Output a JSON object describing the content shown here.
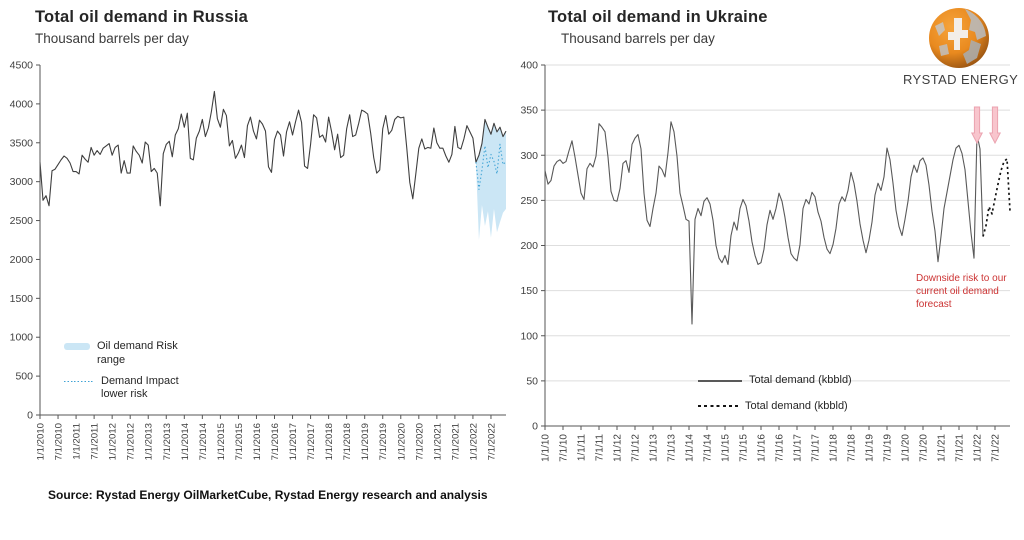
{
  "source": {
    "text": "Source: Rystad Energy OilMarketCube, Rystad Energy research and analysis"
  },
  "logo": {
    "text": "RYSTAD ENERGY",
    "globe_orange": "#e98a1f",
    "globe_dark": "#8a4a10",
    "globe_silver": "#b9b9b9"
  },
  "colors": {
    "russia_line": "#3f3f3f",
    "ukraine_line": "#595959",
    "forecast_dotted": "#141414",
    "risk_band": "#cbe6f5",
    "risk_dotted": "#3fa3d5",
    "grid": "#dedede",
    "axis": "#555555",
    "tick_text": "#3f3f3f",
    "annotation_red": "#cc3333",
    "arrow_fill": "#f8c5cd",
    "arrow_stroke": "#eba3b0"
  },
  "chart_data": [
    {
      "id": "russia",
      "type": "line",
      "title": "Total oil demand in Russia",
      "subtitle": "Thousand barrels per day",
      "unit": "kbbld",
      "ylim": [
        0,
        4500
      ],
      "yticks": [
        0,
        500,
        1000,
        1500,
        2000,
        2500,
        3000,
        3500,
        4000,
        4500
      ],
      "grid": false,
      "months_total": 156,
      "x_tick_every": 6,
      "x_tick_labels": [
        "1/1/2010",
        "7/1/2010",
        "1/1/2011",
        "7/1/2011",
        "1/1/2012",
        "7/1/2012",
        "1/1/2013",
        "7/1/2013",
        "1/1/2014",
        "7/1/2014",
        "1/1/2015",
        "7/1/2015",
        "1/1/2016",
        "7/1/2016",
        "1/1/2017",
        "7/1/2017",
        "1/1/2018",
        "7/1/2018",
        "1/1/2019",
        "7/1/2019",
        "1/1/2020",
        "7/1/2020",
        "1/1/2021",
        "7/1/2021",
        "1/1/2022",
        "7/1/2022"
      ],
      "series": [
        {
          "name": "Total demand",
          "style": "solid",
          "color": "#3f3f3f",
          "start_month": 0,
          "values": [
            3250,
            2760,
            2820,
            2690,
            3140,
            3160,
            3220,
            3280,
            3330,
            3300,
            3240,
            3130,
            3130,
            3100,
            3340,
            3290,
            3250,
            3440,
            3340,
            3400,
            3350,
            3430,
            3460,
            3490,
            3340,
            3440,
            3470,
            3110,
            3270,
            3110,
            3110,
            3460,
            3390,
            3340,
            3240,
            3510,
            3470,
            3130,
            3170,
            3110,
            2690,
            3360,
            3480,
            3520,
            3320,
            3600,
            3680,
            3870,
            3700,
            3880,
            3300,
            3280,
            3560,
            3650,
            3800,
            3580,
            3690,
            3900,
            4160,
            3810,
            3700,
            3930,
            3850,
            3460,
            3530,
            3300,
            3370,
            3470,
            3310,
            3720,
            3830,
            3650,
            3550,
            3790,
            3740,
            3650,
            3190,
            3120,
            3540,
            3650,
            3600,
            3330,
            3640,
            3770,
            3600,
            3770,
            3920,
            3760,
            3200,
            3170,
            3480,
            3860,
            3820,
            3570,
            3600,
            3510,
            3830,
            3640,
            3410,
            3610,
            3310,
            3340,
            3680,
            3860,
            3580,
            3600,
            3750,
            3920,
            3900,
            3870,
            3620,
            3310,
            3110,
            3150,
            3680,
            3850,
            3610,
            3660,
            3800,
            3840,
            3820,
            3830,
            3430,
            2990,
            2780,
            3100,
            3430,
            3550,
            3420,
            3440,
            3430,
            3690,
            3500,
            3430,
            3430,
            3330,
            3250,
            3350,
            3710,
            3440,
            3420,
            3550,
            3720,
            3640,
            3560,
            3250,
            3340,
            3490,
            3800,
            3700,
            3610,
            3750,
            3640,
            3700,
            3580,
            3650
          ]
        },
        {
          "name": "Demand Impact lower risk",
          "style": "dotted-fine",
          "color": "#3fa3d5",
          "start_month": 145,
          "values": [
            3250,
            2900,
            3150,
            3460,
            3180,
            3350,
            3260,
            3100,
            3480,
            3220,
            3260
          ]
        }
      ],
      "band": {
        "name": "Oil demand Risk range",
        "color": "#cbe6f5",
        "start_month": 145,
        "top": [
          3250,
          3340,
          3490,
          3800,
          3700,
          3610,
          3750,
          3640,
          3700,
          3580,
          3650
        ],
        "bottom": [
          3250,
          2250,
          2700,
          2430,
          2620,
          2280,
          2650,
          2350,
          2480,
          2600,
          2650
        ]
      },
      "legend": [
        {
          "label": "Oil demand Risk range",
          "swatch": "band"
        },
        {
          "label": "Demand Impact lower risk",
          "swatch": "dotblue"
        }
      ]
    },
    {
      "id": "ukraine",
      "type": "line",
      "title": "Total oil demand in Ukraine",
      "subtitle": "Thousand barrels per day",
      "unit": "kbbld",
      "ylim": [
        0,
        400
      ],
      "yticks": [
        0,
        50,
        100,
        150,
        200,
        250,
        300,
        350,
        400
      ],
      "grid": true,
      "months_total": 156,
      "x_tick_every": 6,
      "x_tick_labels": [
        "1/1/10",
        "7/1/10",
        "1/1/11",
        "7/1/11",
        "1/1/12",
        "7/1/12",
        "1/1/13",
        "7/1/13",
        "1/1/14",
        "7/1/14",
        "1/1/15",
        "7/1/15",
        "1/1/16",
        "7/1/16",
        "1/1/17",
        "7/1/17",
        "1/1/18",
        "7/1/18",
        "1/1/19",
        "7/1/19",
        "1/1/20",
        "7/1/20",
        "1/1/21",
        "7/1/21",
        "1/1/22",
        "7/1/22"
      ],
      "series": [
        {
          "name": "Total demand (kbbld)",
          "style": "solid",
          "color": "#595959",
          "start_month": 0,
          "values": [
            283,
            268,
            272,
            288,
            293,
            295,
            291,
            293,
            305,
            316,
            298,
            278,
            258,
            251,
            285,
            291,
            287,
            299,
            335,
            331,
            326,
            298,
            260,
            250,
            249,
            263,
            291,
            294,
            281,
            312,
            319,
            323,
            307,
            258,
            228,
            221,
            241,
            258,
            288,
            284,
            276,
            303,
            337,
            326,
            299,
            258,
            244,
            229,
            227,
            113,
            229,
            241,
            233,
            249,
            253,
            246,
            228,
            200,
            186,
            181,
            189,
            179,
            211,
            226,
            217,
            241,
            251,
            244,
            227,
            204,
            189,
            179,
            181,
            196,
            223,
            239,
            229,
            241,
            258,
            249,
            231,
            209,
            191,
            186,
            183,
            201,
            241,
            251,
            246,
            259,
            254,
            237,
            227,
            209,
            196,
            191,
            201,
            219,
            246,
            254,
            249,
            261,
            281,
            269,
            249,
            224,
            206,
            192,
            206,
            226,
            256,
            269,
            261,
            276,
            308,
            295,
            269,
            239,
            221,
            211,
            229,
            249,
            276,
            289,
            281,
            294,
            297,
            289,
            267,
            238,
            216,
            182,
            210,
            241,
            259,
            277,
            295,
            308,
            311,
            302,
            284,
            249,
            214,
            186,
            323,
            307,
            210
          ]
        },
        {
          "name": "Total demand (kbbld)",
          "style": "dotted-bold",
          "color": "#141414",
          "start_month": 146,
          "values": [
            210,
            222,
            243,
            235,
            252,
            268,
            283,
            293,
            296,
            238
          ]
        }
      ],
      "legend": [
        {
          "label": "Total demand (kbbld)",
          "swatch": "line"
        },
        {
          "label": "Total demand (kbbld)",
          "swatch": "dotblack"
        }
      ],
      "annotation": {
        "text": "Downside risk to our current oil demand forecast",
        "color": "#cc3333"
      },
      "arrows": {
        "months": [
          144,
          150
        ],
        "fill": "#f8c5cd",
        "stroke": "#eba3b0"
      }
    }
  ]
}
